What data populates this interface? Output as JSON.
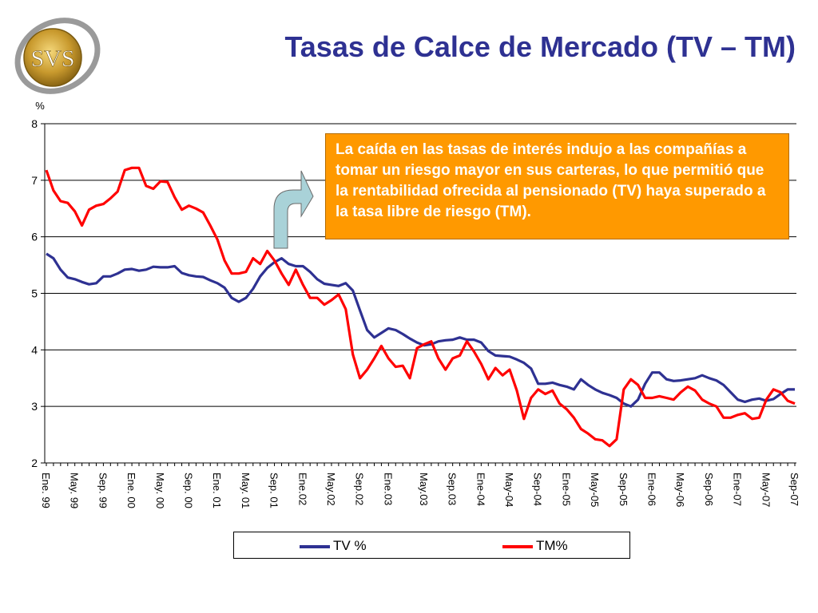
{
  "header": {
    "title": "Tasas de Calce de Mercado (TV – TM)"
  },
  "logo": {
    "text": "SVS"
  },
  "annotation": {
    "text": "La caída en las tasas de interés indujo a las compañías a tomar un riesgo mayor en sus carteras, lo que permitió que la rentabilidad ofrecida al pensionado (TV) haya superado a la tasa libre de riesgo (TM)."
  },
  "colors": {
    "title": "#2e3192",
    "tv": "#2e3192",
    "tm": "#ff0000",
    "annotation_bg": "#ff9900",
    "arrow": "#a9d2d8"
  },
  "chart_data": {
    "type": "line",
    "ylabel": "%",
    "ylim": [
      2,
      8
    ],
    "yticks": [
      2,
      3,
      4,
      5,
      6,
      7,
      8
    ],
    "grid": "horizontal",
    "legend": "bottom",
    "x_tick_labels": [
      "Ene. 99",
      "May. 99",
      "Sep. 99",
      "Ene. 00",
      "May. 00",
      "Sep. 00",
      "Ene. 01",
      "May. 01",
      "Sep. 01",
      "Ene.02",
      "May.02",
      "Sep.02",
      "Ene.03",
      "May.03",
      "Sep.03",
      "Ene-04",
      "May-04",
      "Sep-04",
      "Ene-05",
      "May-05",
      "Sep-05",
      "Ene-06",
      "May-06",
      "Sep-06",
      "Ene-07",
      "May-07",
      "Sep-07"
    ],
    "series": [
      {
        "name": "TV %",
        "color": "#2e3192",
        "values": [
          5.7,
          5.62,
          5.42,
          5.28,
          5.25,
          5.2,
          5.16,
          5.18,
          5.3,
          5.3,
          5.35,
          5.42,
          5.43,
          5.4,
          5.42,
          5.47,
          5.46,
          5.46,
          5.48,
          5.36,
          5.32,
          5.3,
          5.29,
          5.23,
          5.18,
          5.1,
          4.92,
          4.85,
          4.92,
          5.08,
          5.3,
          5.45,
          5.55,
          5.62,
          5.52,
          5.48,
          5.48,
          5.38,
          5.25,
          5.17,
          5.15,
          5.13,
          5.18,
          5.05,
          4.7,
          4.35,
          4.22,
          4.3,
          4.38,
          4.35,
          4.28,
          4.2,
          4.13,
          4.08,
          4.1,
          4.15,
          4.17,
          4.18,
          4.22,
          4.18,
          4.18,
          4.13,
          3.98,
          3.9,
          3.89,
          3.88,
          3.83,
          3.77,
          3.67,
          3.4,
          3.4,
          3.42,
          3.38,
          3.35,
          3.3,
          3.48,
          3.38,
          3.3,
          3.24,
          3.2,
          3.15,
          3.05,
          3.0,
          3.12,
          3.4,
          3.6,
          3.6,
          3.48,
          3.45,
          3.46,
          3.48,
          3.5,
          3.55,
          3.5,
          3.46,
          3.38,
          3.25,
          3.12,
          3.08,
          3.12,
          3.14,
          3.1,
          3.13,
          3.22,
          3.3,
          3.3
        ]
      },
      {
        "name": "TM%",
        "color": "#ff0000",
        "values": [
          7.18,
          6.82,
          6.63,
          6.6,
          6.45,
          6.2,
          6.48,
          6.55,
          6.58,
          6.68,
          6.8,
          7.18,
          7.22,
          7.22,
          6.9,
          6.85,
          6.98,
          6.97,
          6.7,
          6.48,
          6.55,
          6.5,
          6.43,
          6.2,
          5.95,
          5.58,
          5.35,
          5.35,
          5.38,
          5.62,
          5.52,
          5.75,
          5.58,
          5.35,
          5.15,
          5.42,
          5.15,
          4.92,
          4.92,
          4.8,
          4.88,
          4.98,
          4.72,
          3.92,
          3.5,
          3.65,
          3.85,
          4.07,
          3.85,
          3.7,
          3.72,
          3.5,
          4.03,
          4.1,
          4.15,
          3.85,
          3.65,
          3.85,
          3.9,
          4.15,
          3.97,
          3.75,
          3.48,
          3.68,
          3.55,
          3.65,
          3.28,
          2.78,
          3.15,
          3.3,
          3.22,
          3.28,
          3.05,
          2.95,
          2.8,
          2.6,
          2.52,
          2.42,
          2.4,
          2.3,
          2.42,
          3.3,
          3.48,
          3.38,
          3.15,
          3.15,
          3.18,
          3.15,
          3.12,
          3.25,
          3.35,
          3.28,
          3.12,
          3.05,
          3.0,
          2.8,
          2.8,
          2.85,
          2.88,
          2.78,
          2.8,
          3.12,
          3.3,
          3.25,
          3.1,
          3.05
        ]
      }
    ]
  }
}
